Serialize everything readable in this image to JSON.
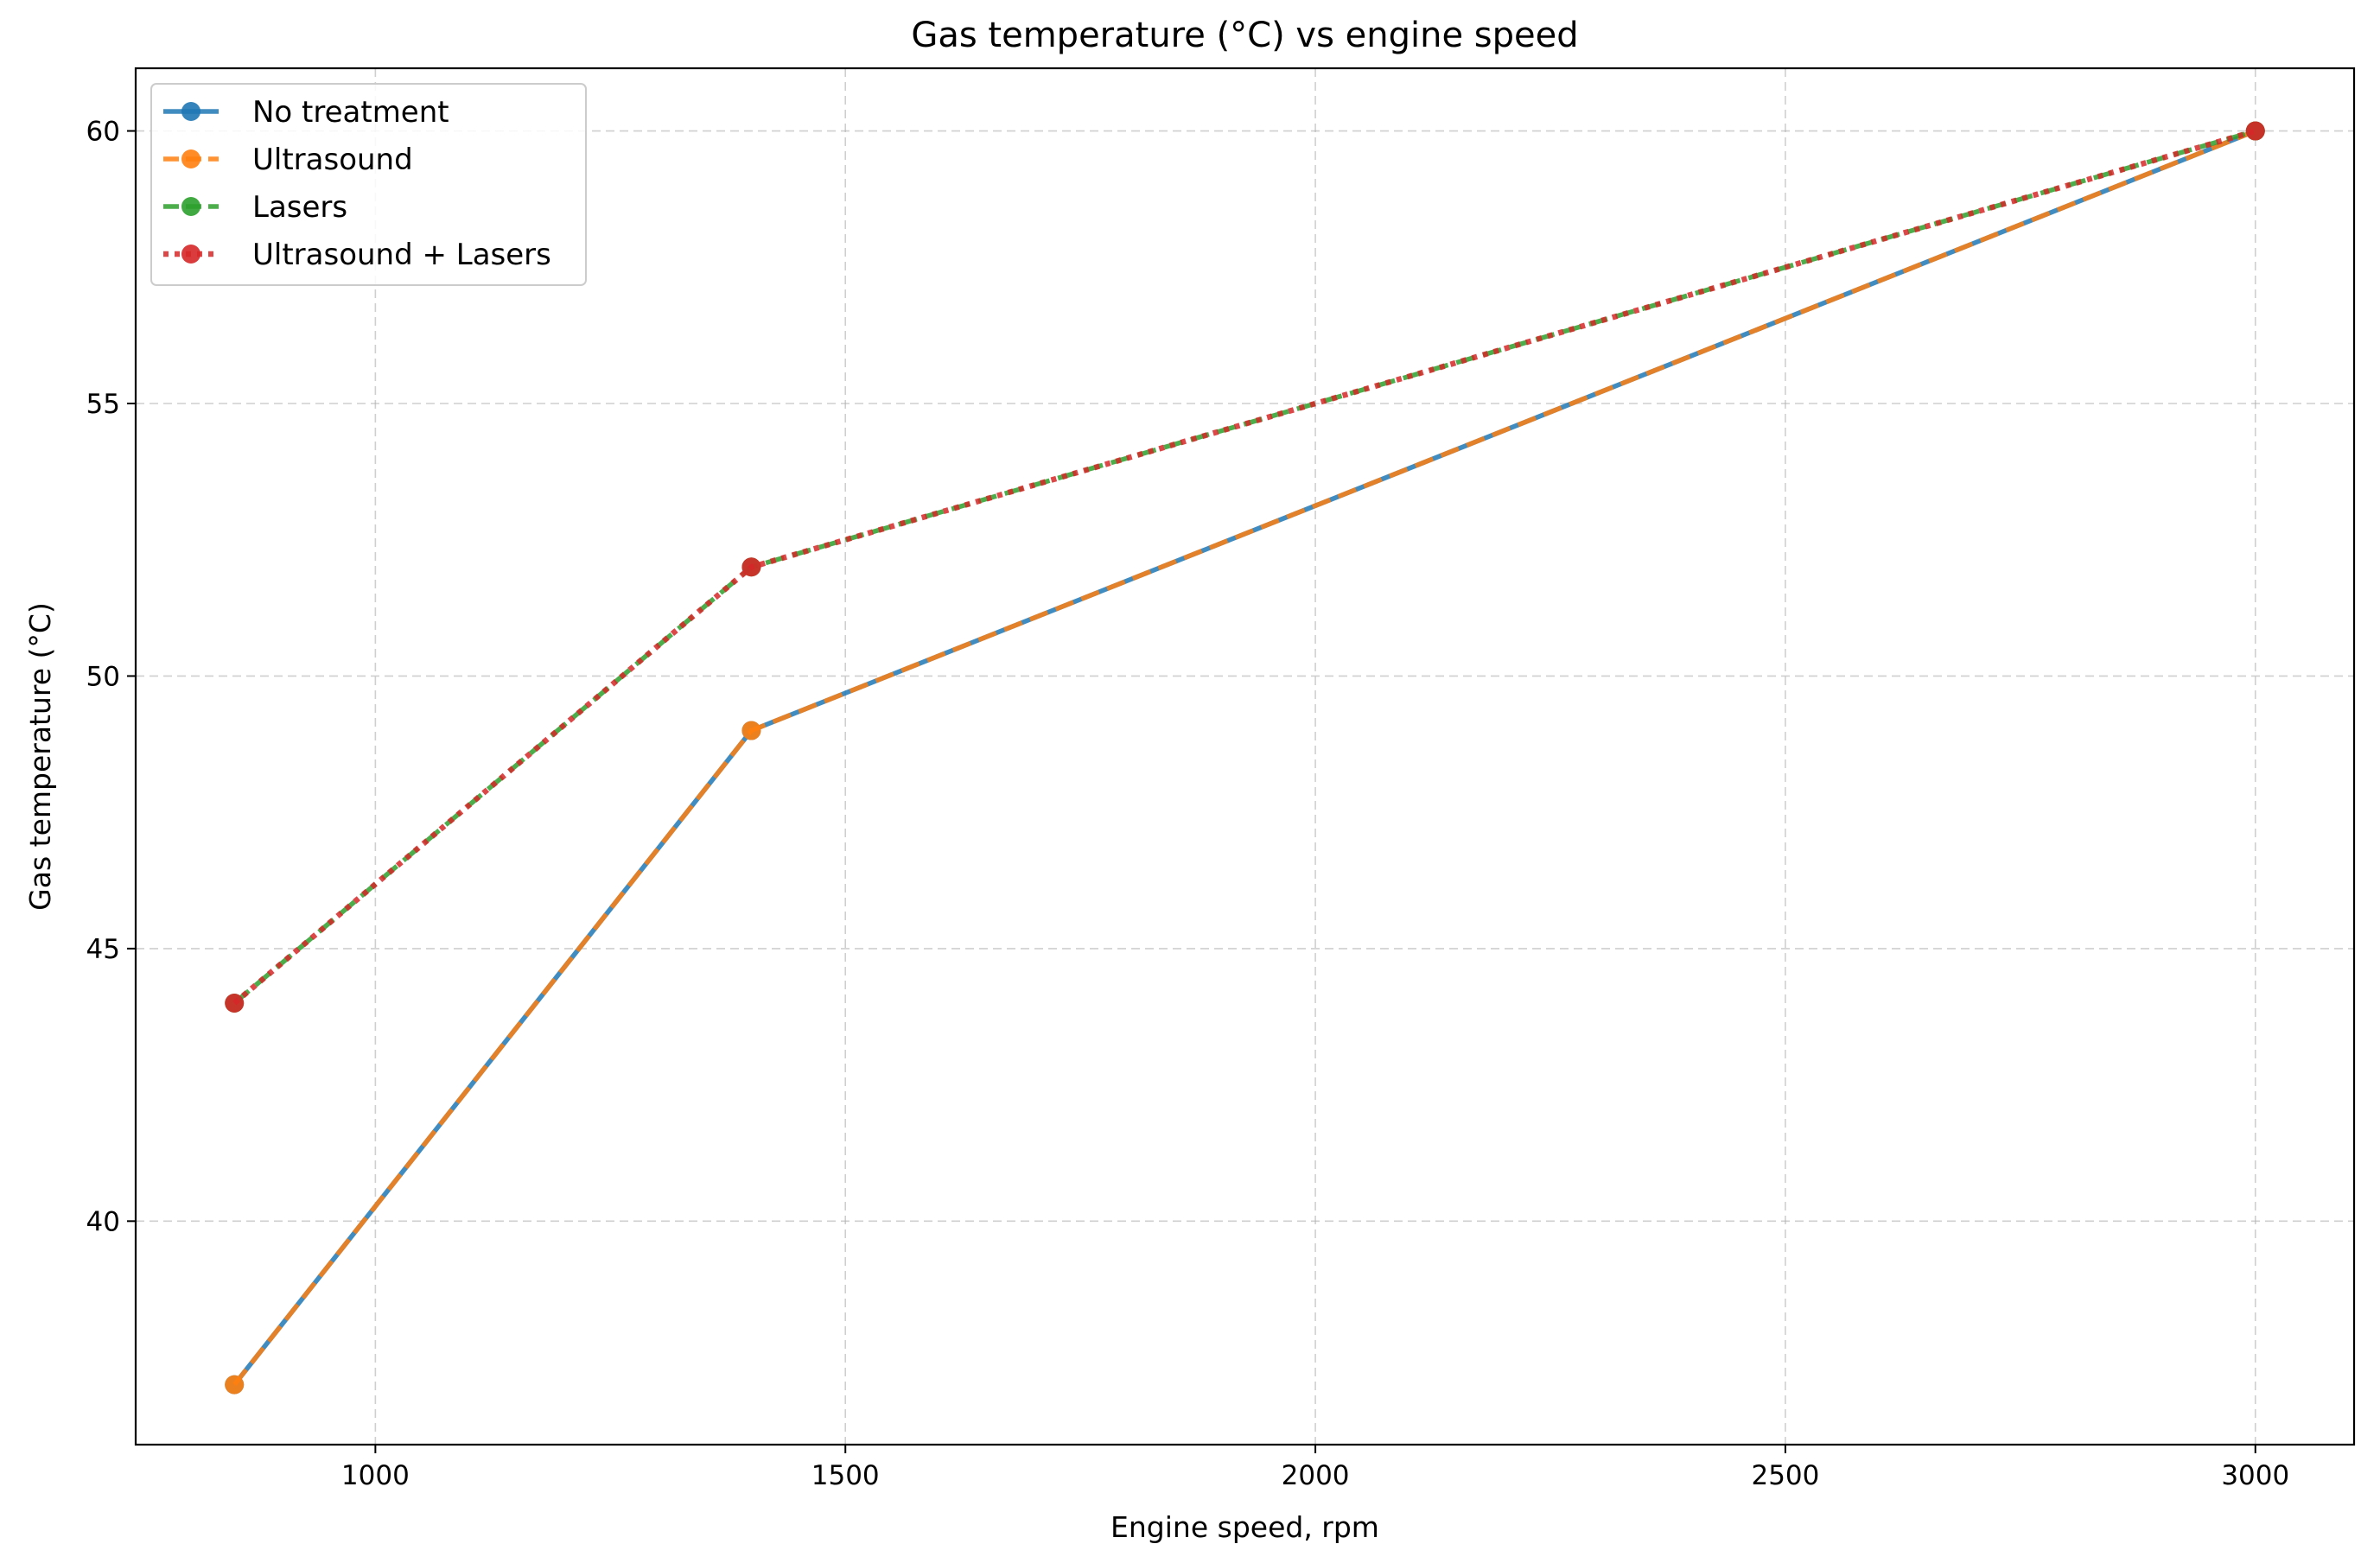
{
  "chart_data": {
    "type": "line",
    "title": "Gas temperature (°C) vs engine speed",
    "xlabel": "Engine speed, rpm",
    "ylabel": "Gas temperature (°C)",
    "xlim": [
      745,
      3105
    ],
    "ylim": [
      35.9,
      61.15
    ],
    "xticks": [
      1000,
      1500,
      2000,
      2500,
      3000
    ],
    "yticks": [
      40,
      45,
      50,
      55,
      60
    ],
    "grid": true,
    "legend_position": "top-left",
    "x": [
      850,
      1400,
      3000
    ],
    "series": [
      {
        "name": "No treatment",
        "values": [
          37,
          49,
          60
        ],
        "color": "#1f77b4",
        "dash": "solid"
      },
      {
        "name": "Ultrasound",
        "values": [
          37,
          49,
          60
        ],
        "color": "#ff7f0e",
        "dash": "dashed"
      },
      {
        "name": "Lasers",
        "values": [
          44,
          52,
          60
        ],
        "color": "#2ca02c",
        "dash": "dashed"
      },
      {
        "name": "Ultrasound + Lasers",
        "values": [
          44,
          52,
          60
        ],
        "color": "#d62728",
        "dash": "dotted"
      }
    ]
  }
}
